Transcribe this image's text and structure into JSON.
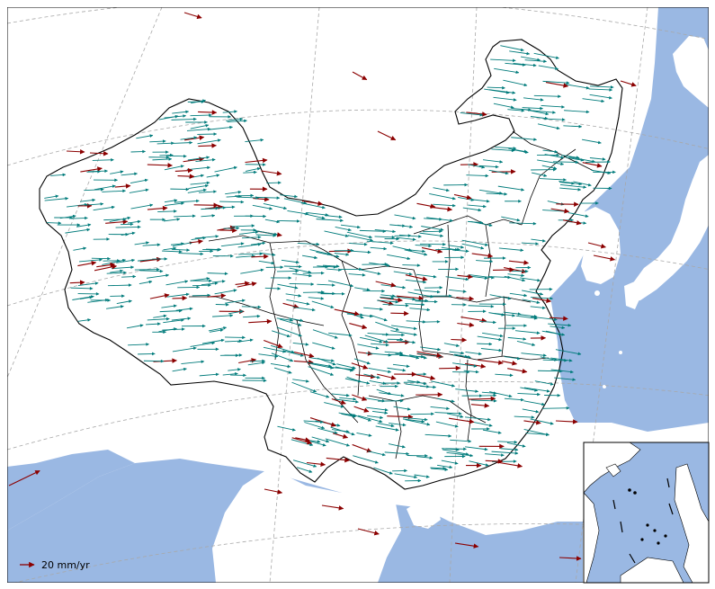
{
  "legend": {
    "label": "20 mm/yr",
    "reference_mm_per_yr": 20
  },
  "colors": {
    "ocean": "#9ab8e3",
    "land": "#ffffff",
    "border": "#000000",
    "graticule": "#a8a8a8",
    "observed_vector": "#8b0000",
    "model_vector": "#007b7b"
  },
  "layers": {
    "graticule": true,
    "provincial_boundaries": true,
    "south_china_sea_inset": true,
    "scale_arrow": true
  },
  "icons": {
    "legend_arrow": "right-arrow-icon"
  }
}
